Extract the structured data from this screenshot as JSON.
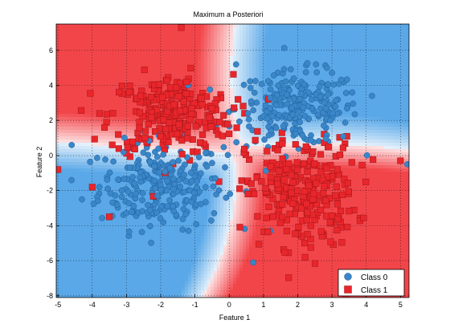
{
  "chart_data": {
    "type": "scatter",
    "title": "Maximum a Posteriori",
    "xlabel": "Feature 1",
    "ylabel": "Feature 2",
    "xlim": [
      -5.05,
      5.25
    ],
    "ylim": [
      -8.1,
      7.5
    ],
    "xticks": [
      -5,
      -4,
      -3,
      -2,
      -1,
      0,
      1,
      2,
      3,
      4,
      5
    ],
    "yticks": [
      -8,
      -6,
      -4,
      -2,
      0,
      2,
      4,
      6
    ],
    "xtick_labels": [
      "-5",
      "-4",
      "-3",
      "-2",
      "-1",
      "0",
      "1",
      "2",
      "3",
      "4",
      "5"
    ],
    "ytick_labels": [
      "-8",
      "-6",
      "-4",
      "-2",
      "0",
      "2",
      "4",
      "6"
    ],
    "grid": true,
    "legend_position": "bottom-right",
    "background": "decision regions: blue = Class 0, red = Class 1",
    "colors": {
      "class0": "#3a86c8",
      "class0_edge": "#1c5e98",
      "class1": "#e8262b",
      "class1_edge": "#a01418",
      "region0": "#5aa8e8",
      "region1": "#f2454a"
    },
    "series": [
      {
        "name": "Class 0",
        "marker": "circle",
        "clusters": [
          {
            "center": [
              -2.0,
              -1.7
            ],
            "spread": [
              0.9,
              1.25
            ],
            "count": 260
          },
          {
            "center": [
              2.0,
              2.7
            ],
            "spread": [
              0.9,
              1.05
            ],
            "count": 240
          }
        ],
        "points": [
          [
            0.7,
            -6.1
          ],
          [
            -4.6,
            0.6
          ],
          [
            5.2,
            -0.5
          ],
          [
            -1.2,
            4.0
          ],
          [
            0.2,
            5.2
          ],
          [
            -4.3,
            -2.5
          ],
          [
            1.2,
            -4.3
          ]
        ]
      },
      {
        "name": "Class 1",
        "marker": "square",
        "clusters": [
          {
            "center": [
              -1.7,
              2.3
            ],
            "spread": [
              0.9,
              1.15
            ],
            "count": 260
          },
          {
            "center": [
              2.1,
              -2.1
            ],
            "spread": [
              0.8,
              1.55
            ],
            "count": 260
          }
        ],
        "points": [
          [
            -1.4,
            7.3
          ],
          [
            -5.0,
            -0.8
          ],
          [
            3.4,
            -8.0
          ],
          [
            5.0,
            -0.3
          ],
          [
            -4.0,
            -1.8
          ],
          [
            -3.5,
            -3.5
          ]
        ]
      }
    ]
  }
}
